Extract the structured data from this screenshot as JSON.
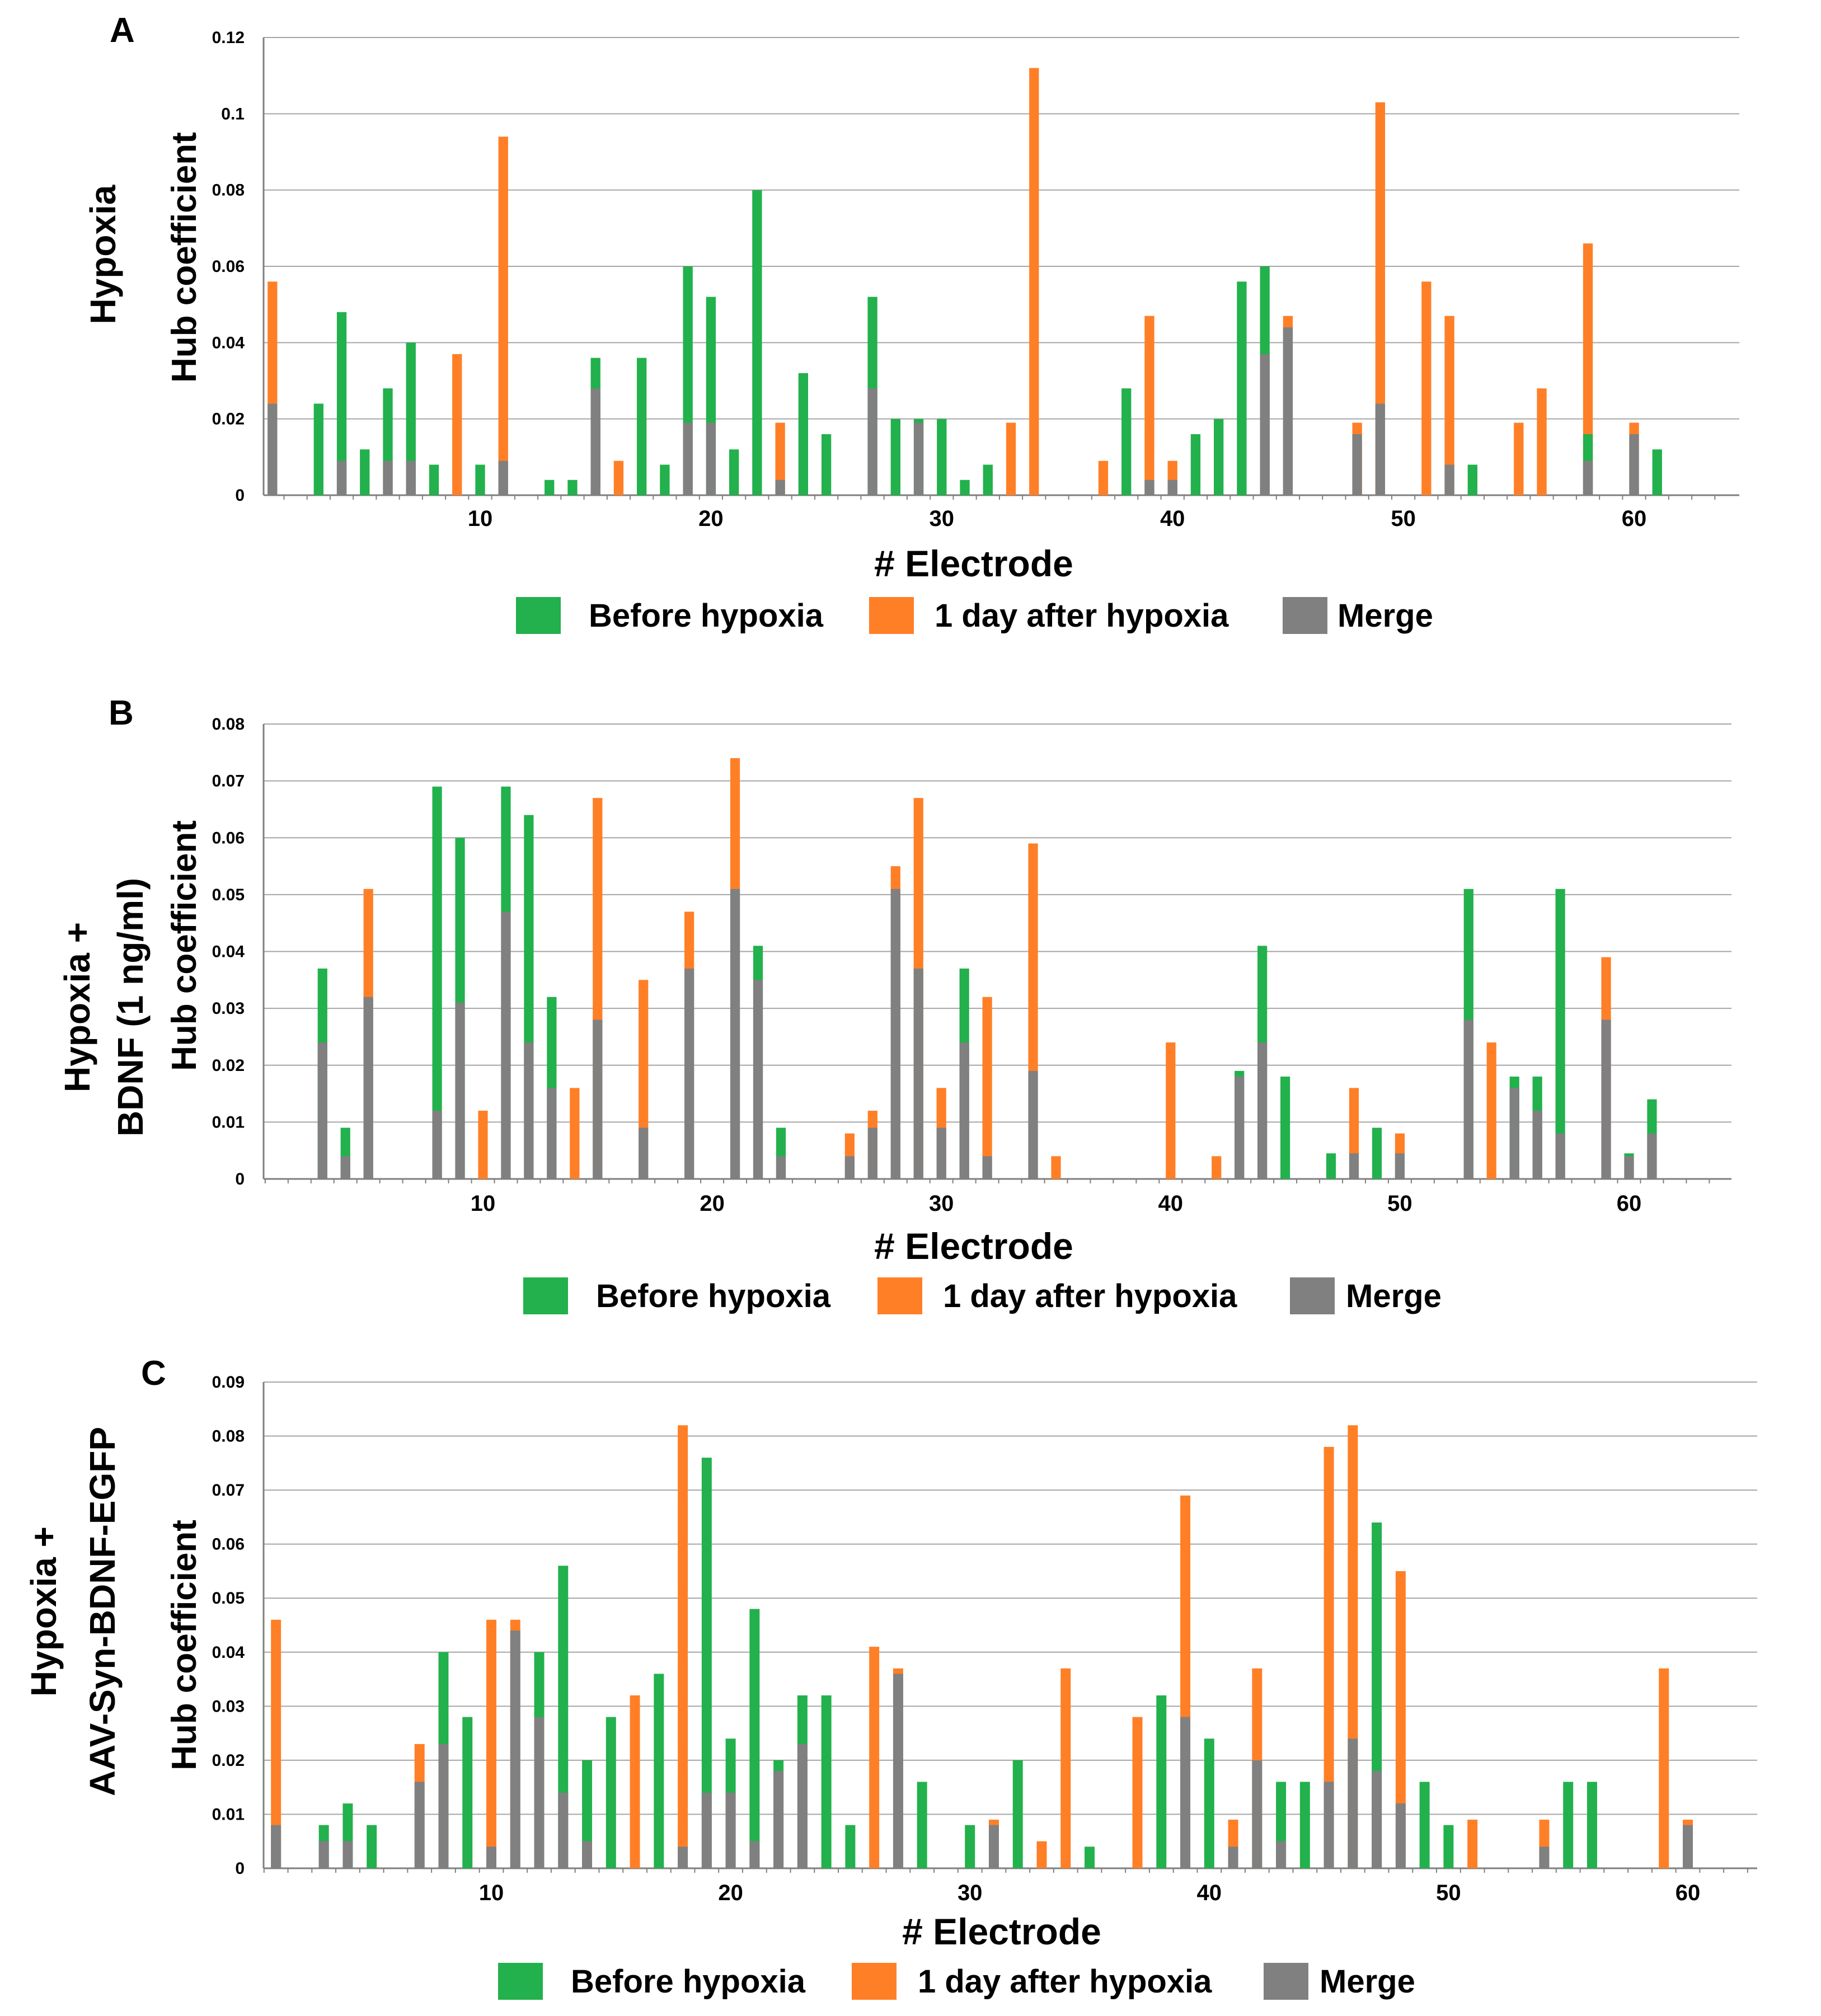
{
  "colors": {
    "before": "#22b14c",
    "after": "#ff7f27",
    "merge": "#808080",
    "grid": "#a6a6a6"
  },
  "legend": {
    "before": "Before hypoxia",
    "after": "1 day after hypoxia",
    "merge": "Merge"
  },
  "chart_data": [
    {
      "type": "bar",
      "panel": "A",
      "condition": "Hypoxia",
      "title": "",
      "xlabel": "# Electrode",
      "ylabel": "Hub coefficient",
      "ylim": [
        0,
        0.12
      ],
      "yticks": [
        "0",
        "0.02",
        "0.04",
        "0.06",
        "0.08",
        "0.1",
        "0.12"
      ],
      "xticks": [
        "10",
        "20",
        "30",
        "40",
        "50",
        "60"
      ],
      "grid": true,
      "legend_position": "bottom",
      "series": [
        {
          "name": "Before hypoxia",
          "values": [
            0,
            0,
            0.024,
            0.048,
            0.012,
            0.028,
            0.04,
            0.008,
            0,
            0.008,
            0,
            0,
            0.004,
            0.004,
            0.036,
            0,
            0.036,
            0.008,
            0.06,
            0.052,
            0.012,
            0.08,
            0,
            0.032,
            0.016,
            0,
            0.052,
            0.02,
            0.02,
            0.02,
            0.004,
            0.008,
            0,
            0,
            0,
            0,
            0,
            0.028,
            0,
            0,
            0.016,
            0.02,
            0.056,
            0.06,
            0,
            0,
            0,
            0,
            0,
            0,
            0,
            0,
            0.008,
            0,
            0,
            0,
            0,
            0.016,
            0,
            0,
            0.012
          ]
        },
        {
          "name": "1 day after hypoxia",
          "values": [
            0.056,
            0,
            0,
            0,
            0,
            0,
            0,
            0,
            0.037,
            0,
            0.094,
            0,
            0,
            0,
            0,
            0.009,
            0,
            0,
            0,
            0,
            0,
            0,
            0.019,
            0,
            0,
            0,
            0,
            0,
            0,
            0,
            0,
            0,
            0.019,
            0.112,
            0,
            0,
            0.009,
            0,
            0.047,
            0.009,
            0,
            0,
            0,
            0,
            0.047,
            0,
            0,
            0.019,
            0.103,
            0,
            0.056,
            0.047,
            0,
            0,
            0.019,
            0.028,
            0,
            0.066,
            0,
            0.019,
            0
          ]
        },
        {
          "name": "Merge",
          "values": [
            0.024,
            0,
            0,
            0.009,
            0,
            0.009,
            0.009,
            0,
            0,
            0,
            0.009,
            0,
            0,
            0,
            0.028,
            0,
            0,
            0,
            0.019,
            0.019,
            0,
            0,
            0.004,
            0,
            0,
            0,
            0.028,
            0,
            0.019,
            0,
            0,
            0,
            0,
            0,
            0,
            0,
            0,
            0,
            0.004,
            0.004,
            0,
            0,
            0,
            0.037,
            0.044,
            0,
            0,
            0.016,
            0.024,
            0,
            0,
            0.008,
            0,
            0,
            0,
            0,
            0,
            0.009,
            0,
            0.016,
            0
          ]
        }
      ]
    },
    {
      "type": "bar",
      "panel": "B",
      "condition": [
        "Hypoxia +",
        "BDNF (1 ng/ml)"
      ],
      "title": "",
      "xlabel": "# Electrode",
      "ylabel": "Hub coefficient",
      "ylim": [
        0,
        0.08
      ],
      "yticks": [
        "0",
        "0.01",
        "0.02",
        "0.03",
        "0.04",
        "0.05",
        "0.06",
        "0.07",
        "0.08"
      ],
      "xticks": [
        "10",
        "20",
        "30",
        "40",
        "50",
        "60"
      ],
      "grid": true,
      "legend_position": "bottom",
      "series": [
        {
          "name": "Before hypoxia",
          "values": [
            0,
            0,
            0.037,
            0.009,
            0,
            0,
            0,
            0.069,
            0.06,
            0,
            0.069,
            0.064,
            0.032,
            0,
            0,
            0,
            0,
            0,
            0,
            0,
            0,
            0.041,
            0.009,
            0,
            0,
            0,
            0,
            0,
            0,
            0,
            0.037,
            0,
            0,
            0,
            0,
            0,
            0,
            0,
            0,
            0,
            0,
            0,
            0.019,
            0.041,
            0.018,
            0,
            0.0045,
            0,
            0.009,
            0,
            0,
            0,
            0.051,
            0,
            0.018,
            0.018,
            0.051,
            0,
            0,
            0.0045,
            0.014
          ]
        },
        {
          "name": "1 day after hypoxia",
          "values": [
            0,
            0,
            0,
            0,
            0.051,
            0,
            0,
            0,
            0,
            0.012,
            0,
            0,
            0,
            0.016,
            0.067,
            0,
            0.035,
            0,
            0.047,
            0,
            0.074,
            0,
            0,
            0,
            0,
            0.008,
            0.012,
            0.055,
            0.067,
            0.016,
            0,
            0.032,
            0,
            0.059,
            0.004,
            0,
            0,
            0,
            0,
            0.024,
            0,
            0.004,
            0,
            0,
            0,
            0,
            0,
            0.016,
            0,
            0.008,
            0,
            0,
            0,
            0.024,
            0,
            0,
            0,
            0,
            0.039,
            0,
            0
          ]
        },
        {
          "name": "Merge",
          "values": [
            0,
            0,
            0.024,
            0.004,
            0.032,
            0,
            0,
            0.012,
            0.031,
            0,
            0.047,
            0.024,
            0.016,
            0,
            0.028,
            0,
            0.009,
            0,
            0.037,
            0,
            0.051,
            0.035,
            0.004,
            0,
            0,
            0.004,
            0.009,
            0.051,
            0.037,
            0.009,
            0.024,
            0.004,
            0,
            0.019,
            0,
            0,
            0,
            0,
            0,
            0,
            0,
            0,
            0.018,
            0.024,
            0,
            0,
            0,
            0.0045,
            0,
            0.0045,
            0,
            0,
            0.028,
            0,
            0.016,
            0.012,
            0.008,
            0,
            0.028,
            0.004,
            0.008
          ]
        }
      ]
    },
    {
      "type": "bar",
      "panel": "C",
      "condition": [
        "Hypoxia +",
        "AAV-Syn-BDNF-EGFP"
      ],
      "title": "",
      "xlabel": "# Electrode",
      "ylabel": "Hub coefficient",
      "ylim": [
        0,
        0.09
      ],
      "yticks": [
        "0",
        "0.01",
        "0.02",
        "0.03",
        "0.04",
        "0.05",
        "0.06",
        "0.07",
        "0.08",
        "0.09"
      ],
      "xticks": [
        "10",
        "20",
        "30",
        "40",
        "50",
        "60"
      ],
      "grid": true,
      "legend_position": "bottom",
      "series": [
        {
          "name": "Before hypoxia",
          "values": [
            0,
            0,
            0.008,
            0.012,
            0.008,
            0,
            0,
            0.04,
            0.028,
            0,
            0,
            0.04,
            0.056,
            0.02,
            0.028,
            0,
            0.036,
            0,
            0.076,
            0.024,
            0.048,
            0.02,
            0.032,
            0.032,
            0.008,
            0,
            0,
            0.016,
            0,
            0.008,
            0,
            0.02,
            0,
            0,
            0.004,
            0,
            0,
            0.032,
            0,
            0.024,
            0,
            0,
            0.016,
            0.016,
            0,
            0,
            0.064,
            0,
            0.016,
            0.008,
            0,
            0,
            0,
            0,
            0.016,
            0.016,
            0,
            0,
            0,
            0,
            0
          ]
        },
        {
          "name": "1 day after hypoxia",
          "values": [
            0.046,
            0,
            0,
            0,
            0,
            0,
            0.023,
            0,
            0,
            0.046,
            0.046,
            0,
            0,
            0,
            0,
            0.032,
            0,
            0.082,
            0,
            0,
            0,
            0,
            0,
            0,
            0,
            0.041,
            0.037,
            0,
            0,
            0,
            0.009,
            0,
            0.005,
            0.037,
            0,
            0,
            0.028,
            0,
            0.069,
            0,
            0.009,
            0.037,
            0,
            0,
            0.078,
            0.082,
            0,
            0.055,
            0,
            0,
            0.009,
            0,
            0,
            0.009,
            0,
            0,
            0,
            0,
            0.037,
            0.009,
            0
          ]
        },
        {
          "name": "Merge",
          "values": [
            0.008,
            0,
            0.005,
            0.005,
            0,
            0,
            0.016,
            0.023,
            0,
            0.004,
            0.044,
            0.028,
            0.014,
            0.005,
            0,
            0,
            0,
            0.004,
            0.014,
            0.014,
            0.005,
            0.018,
            0.023,
            0,
            0,
            0,
            0.036,
            0,
            0,
            0,
            0.008,
            0,
            0,
            0,
            0,
            0,
            0,
            0,
            0.028,
            0,
            0.004,
            0.02,
            0.005,
            0,
            0.016,
            0.024,
            0.018,
            0.012,
            0,
            0,
            0,
            0,
            0,
            0.004,
            0,
            0,
            0,
            0,
            0,
            0.008,
            0
          ]
        }
      ]
    }
  ]
}
